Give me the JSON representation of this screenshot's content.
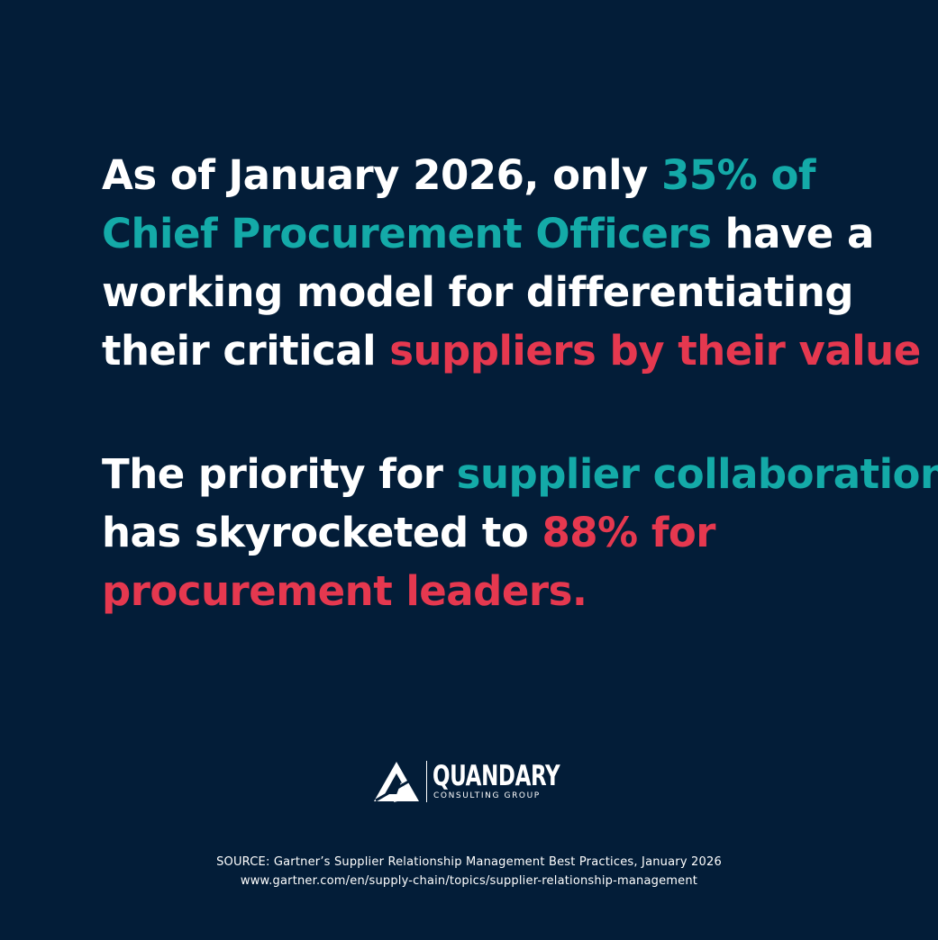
{
  "stat_1": {
    "lines": [
      [
        {
          "text": "As of January 2026, only ",
          "tone": "white"
        },
        {
          "text": "35% of",
          "tone": "teal"
        }
      ],
      [
        {
          "text": "Chief Procurement Officers",
          "tone": "teal"
        },
        {
          "text": " have a",
          "tone": "white"
        }
      ],
      [
        {
          "text": "working model for differentiating",
          "tone": "white"
        }
      ],
      [
        {
          "text": "their critical ",
          "tone": "white"
        },
        {
          "text": "suppliers by their value",
          "tone": "red"
        }
      ]
    ]
  },
  "stat_2": {
    "lines": [
      [
        {
          "text": "The priority for ",
          "tone": "white"
        },
        {
          "text": "supplier collaboration",
          "tone": "teal"
        }
      ],
      [
        {
          "text": "has skyrocketed to ",
          "tone": "white"
        },
        {
          "text": "88% for",
          "tone": "red"
        }
      ],
      [
        {
          "text": "procurement leaders.",
          "tone": "red"
        }
      ]
    ]
  },
  "logo": {
    "name": "QUANDARY",
    "subtitle": "CONSULTING GROUP",
    "icon": "quandary-logo-mark-icon"
  },
  "source": {
    "line": "SOURCE: Gartner’s Supplier Relationship Management Best Practices, January 2026",
    "url": "www.gartner.com/en/supply-chain/topics/supplier-relationship-management"
  },
  "colors": {
    "background": "#031d38",
    "white": "#ffffff",
    "teal": "#14aaa8",
    "red": "#e5384f"
  }
}
